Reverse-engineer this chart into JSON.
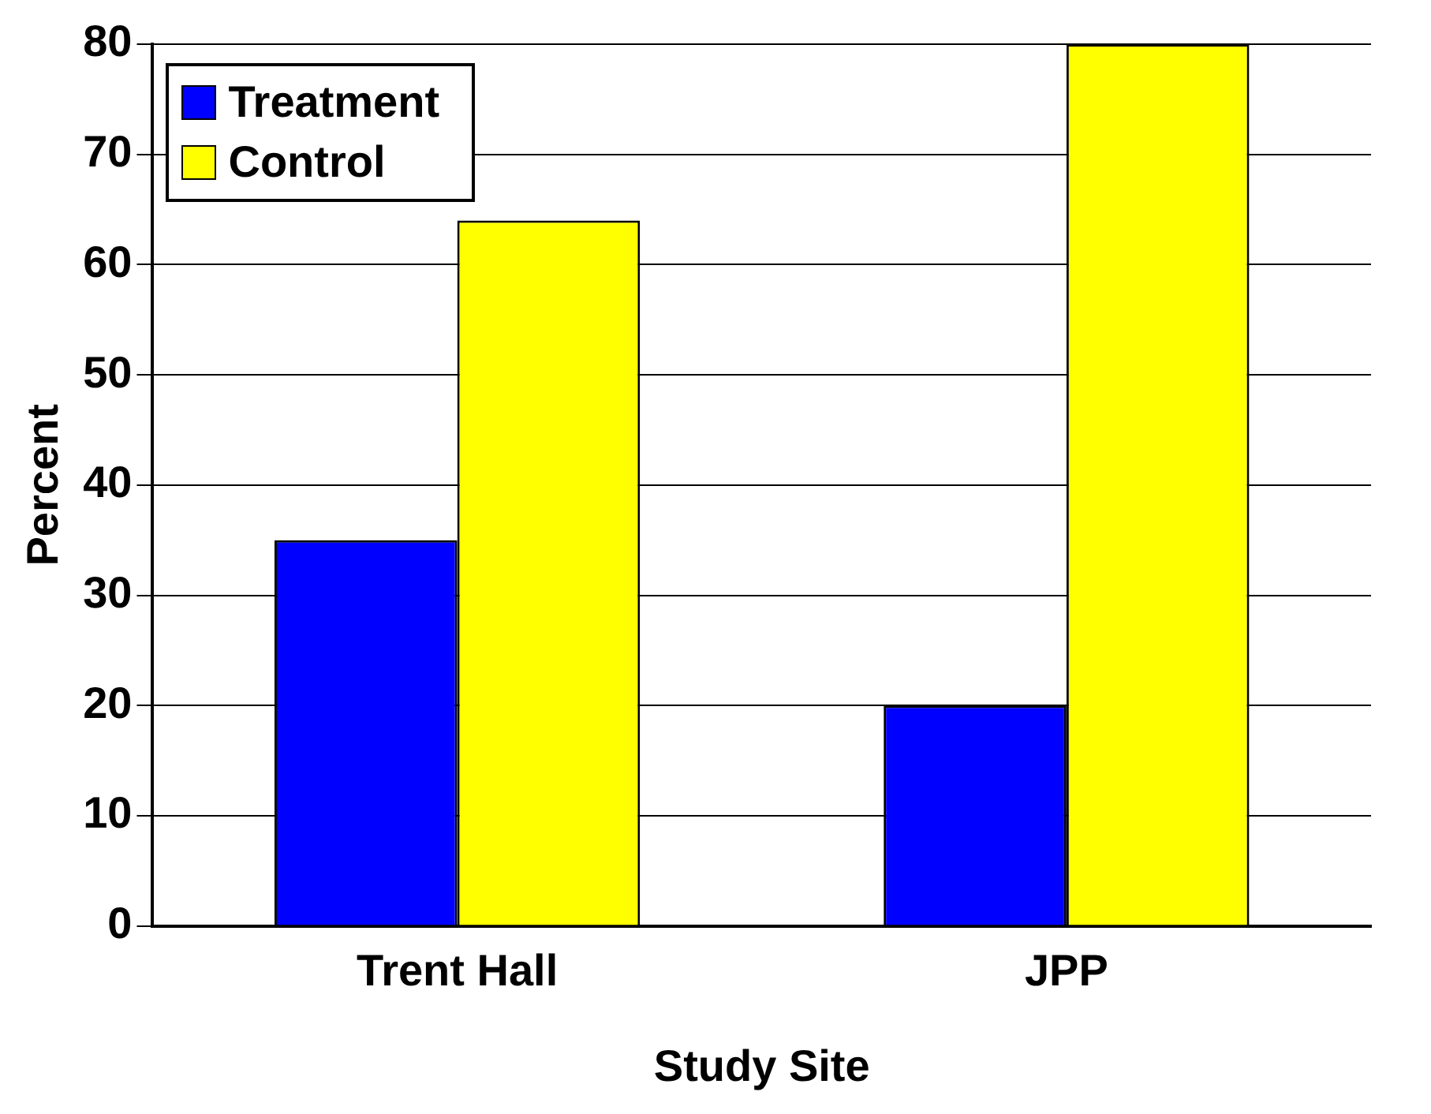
{
  "chart_data": {
    "type": "bar",
    "xlabel": "Study Site",
    "ylabel": "Percent",
    "categories": [
      "Trent Hall",
      "JPP"
    ],
    "series": [
      {
        "name": "Treatment",
        "color": "#0000ff",
        "values": [
          35,
          20
        ]
      },
      {
        "name": "Control",
        "color": "#ffff00",
        "values": [
          64,
          80
        ]
      }
    ],
    "ylim": [
      0,
      80
    ],
    "yticks": [
      0,
      10,
      20,
      30,
      40,
      50,
      60,
      70,
      80
    ],
    "grid": "y",
    "legend": "top left"
  }
}
